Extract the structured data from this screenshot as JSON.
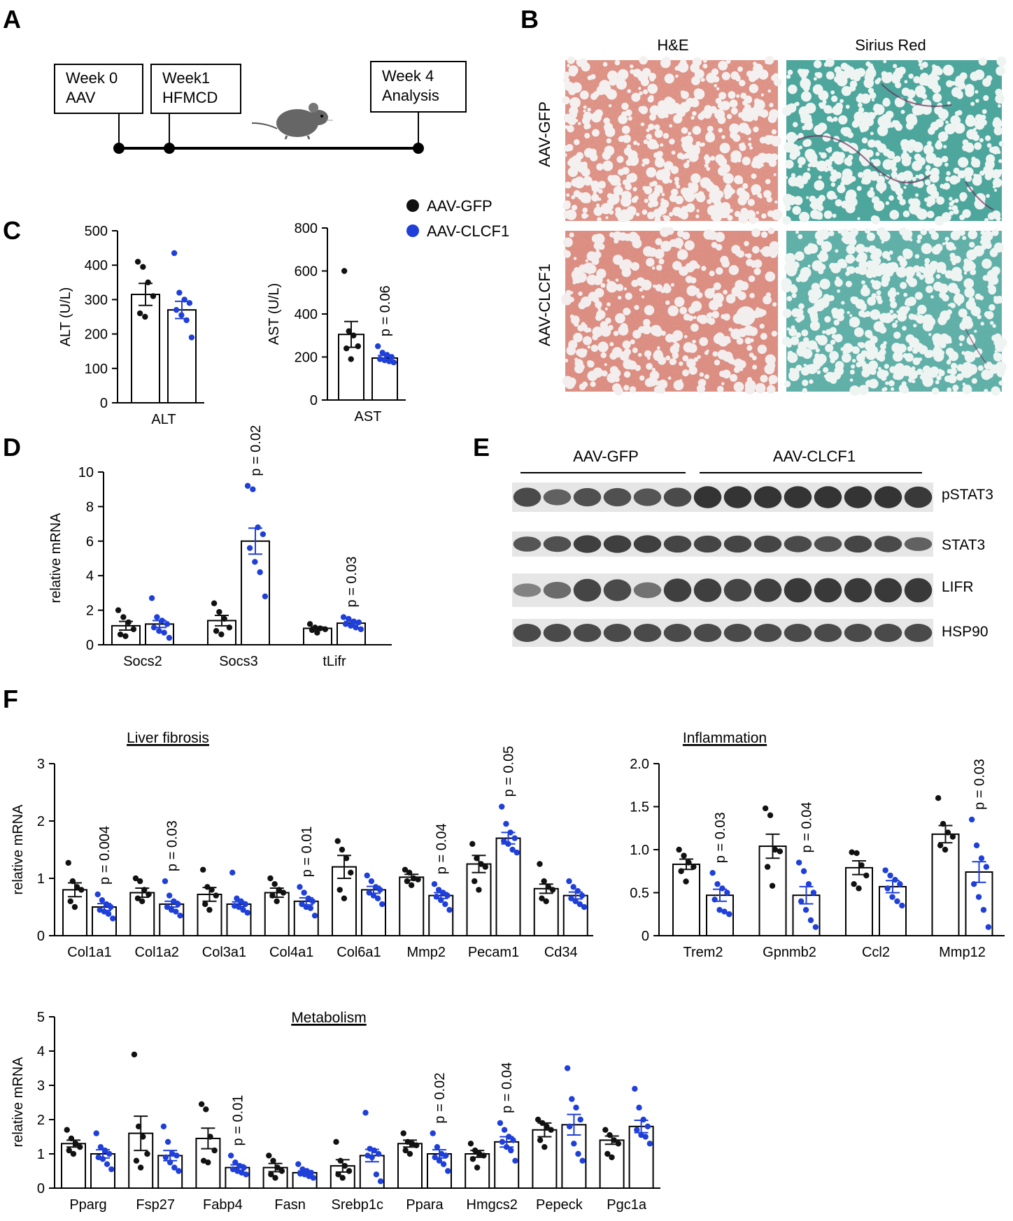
{
  "panel_letters": {
    "a": "A",
    "b": "B",
    "c": "C",
    "d": "D",
    "e": "E",
    "f": "F"
  },
  "colors": {
    "gfp": "#111111",
    "clcf1": "#1f3fd9",
    "he_tissue": "#dd8877",
    "sirius_tissue": "#46a598",
    "blot_band": "#2a2a2a"
  },
  "timeline": {
    "boxes": [
      {
        "line1": "Week 0",
        "line2": "AAV"
      },
      {
        "line1": "Week1",
        "line2": "HFMCD"
      },
      {
        "line1": "Week 4",
        "line2": "Analysis"
      }
    ],
    "icon": "mouse-icon"
  },
  "legend": {
    "gfp": "AAV-GFP",
    "clcf1": "AAV-CLCF1"
  },
  "histology": {
    "columns": [
      "H&E",
      "Sirius Red"
    ],
    "rows": [
      "AAV-GFP",
      "AAV-CLCF1"
    ]
  },
  "western": {
    "group_labels": [
      "AAV-GFP",
      "AAV-CLCF1"
    ],
    "lanes_per_group": [
      6,
      8
    ],
    "rows": [
      {
        "label": "pSTAT3",
        "intensity": [
          0.8,
          0.6,
          0.75,
          0.75,
          0.7,
          0.8,
          1.0,
          1.0,
          1.0,
          1.0,
          1.0,
          1.0,
          1.0,
          0.95
        ]
      },
      {
        "label": "STAT3",
        "intensity": [
          0.7,
          0.75,
          0.9,
          0.9,
          0.9,
          0.85,
          0.85,
          0.85,
          0.85,
          0.8,
          0.75,
          0.85,
          0.8,
          0.6
        ]
      },
      {
        "label": "LIFR",
        "intensity": [
          0.3,
          0.5,
          0.85,
          0.8,
          0.45,
          0.9,
          0.9,
          0.85,
          0.9,
          0.95,
          0.95,
          0.95,
          0.95,
          0.95
        ]
      },
      {
        "label": "HSP90",
        "intensity": [
          0.8,
          0.8,
          0.8,
          0.8,
          0.8,
          0.8,
          0.8,
          0.8,
          0.8,
          0.8,
          0.8,
          0.8,
          0.8,
          0.8
        ]
      }
    ]
  },
  "chart_data": [
    {
      "id": "C-ALT",
      "type": "bar",
      "ylabel": "ALT (U/L)",
      "ylim": [
        0,
        500
      ],
      "yticks": [
        "0",
        "100",
        "200",
        "300",
        "400",
        "500"
      ],
      "categories": [
        "ALT"
      ],
      "series": [
        {
          "color": "gfp",
          "values": [
            315
          ],
          "errors": [
            32
          ],
          "points": [
            [
              410,
              395,
              350,
              310,
              260,
              250
            ]
          ]
        },
        {
          "color": "clcf1",
          "values": [
            270
          ],
          "errors": [
            25
          ],
          "points": [
            [
              435,
              320,
              300,
              290,
              270,
              255,
              240,
              190
            ]
          ]
        }
      ],
      "pvalues": []
    },
    {
      "id": "C-AST",
      "type": "bar",
      "ylabel": "AST (U/L)",
      "ylim": [
        0,
        800
      ],
      "yticks": [
        "0",
        "200",
        "400",
        "600",
        "800"
      ],
      "categories": [
        "AST"
      ],
      "series": [
        {
          "color": "gfp",
          "values": [
            305
          ],
          "errors": [
            60
          ],
          "points": [
            [
              600,
              320,
              300,
              250,
              240,
              190
            ]
          ]
        },
        {
          "color": "clcf1",
          "values": [
            195
          ],
          "errors": [
            12
          ],
          "points": [
            [
              250,
              220,
              210,
              200,
              190,
              185,
              180,
              175
            ]
          ]
        }
      ],
      "pvalues": [
        "p = 0.06"
      ]
    },
    {
      "id": "D",
      "type": "bar",
      "ylabel": "relative mRNA",
      "ylim": [
        0,
        10
      ],
      "yticks": [
        "0",
        "2",
        "4",
        "6",
        "8",
        "10"
      ],
      "categories": [
        "Socs2",
        "Socs3",
        "tLifr"
      ],
      "series": [
        {
          "color": "gfp",
          "values": [
            1.1,
            1.4,
            0.95
          ],
          "errors": [
            0.25,
            0.3,
            0.07
          ],
          "points": [
            [
              2.0,
              1.6,
              1.3,
              0.9,
              0.6,
              0.5
            ],
            [
              2.4,
              1.9,
              1.5,
              1.0,
              0.8,
              0.6
            ],
            [
              1.2,
              1.0,
              0.95,
              0.9,
              0.85,
              0.7
            ]
          ]
        },
        {
          "color": "clcf1",
          "values": [
            1.2,
            6.0,
            1.25
          ],
          "errors": [
            0.2,
            0.75,
            0.1
          ],
          "points": [
            [
              2.7,
              1.6,
              1.4,
              1.2,
              1.0,
              0.8,
              0.7,
              0.4
            ],
            [
              9.2,
              9.0,
              6.8,
              6.4,
              5.6,
              4.8,
              4.2,
              2.8
            ],
            [
              1.6,
              1.5,
              1.35,
              1.3,
              1.2,
              1.1,
              1.0,
              0.9
            ]
          ]
        }
      ],
      "pvalues": [
        "",
        "p = 0.02",
        "p = 0.03"
      ]
    },
    {
      "id": "F-fibrosis",
      "type": "bar",
      "title": "Liver fibrosis",
      "ylabel": "relative mRNA",
      "ylim": [
        0,
        3
      ],
      "yticks": [
        "0",
        "1",
        "2",
        "3"
      ],
      "categories": [
        "Col1a1",
        "Col1a2",
        "Col3a1",
        "Col4a1",
        "Col6a1",
        "Mmp2",
        "Pecam1",
        "Cd34"
      ],
      "series": [
        {
          "color": "gfp",
          "values": [
            0.8,
            0.75,
            0.72,
            0.75,
            1.2,
            1.02,
            1.25,
            0.82
          ],
          "errors": [
            0.12,
            0.08,
            0.12,
            0.08,
            0.2,
            0.05,
            0.15,
            0.08
          ],
          "points": [
            [
              1.27,
              0.95,
              0.85,
              0.8,
              0.6,
              0.5
            ],
            [
              1.0,
              0.95,
              0.8,
              0.72,
              0.65,
              0.6
            ],
            [
              1.15,
              0.85,
              0.8,
              0.7,
              0.55,
              0.45
            ],
            [
              1.0,
              0.9,
              0.8,
              0.75,
              0.7,
              0.6
            ],
            [
              1.65,
              1.5,
              1.35,
              1.1,
              0.8,
              0.65
            ],
            [
              1.15,
              1.1,
              1.0,
              0.98,
              0.95,
              0.88
            ],
            [
              1.6,
              1.35,
              1.25,
              1.2,
              0.95,
              0.8
            ],
            [
              1.25,
              0.95,
              0.85,
              0.8,
              0.65,
              0.6
            ]
          ]
        },
        {
          "color": "clcf1",
          "values": [
            0.5,
            0.55,
            0.55,
            0.6,
            0.8,
            0.7,
            1.7,
            0.7
          ],
          "errors": [
            0.06,
            0.05,
            0.04,
            0.06,
            0.06,
            0.05,
            0.1,
            0.06
          ],
          "points": [
            [
              0.72,
              0.62,
              0.55,
              0.5,
              0.45,
              0.42,
              0.38,
              0.3
            ],
            [
              0.95,
              0.7,
              0.6,
              0.55,
              0.5,
              0.45,
              0.42,
              0.35
            ],
            [
              1.1,
              0.65,
              0.6,
              0.55,
              0.52,
              0.5,
              0.45,
              0.4
            ],
            [
              0.85,
              0.75,
              0.65,
              0.6,
              0.55,
              0.5,
              0.48,
              0.35
            ],
            [
              1.05,
              0.95,
              0.85,
              0.8,
              0.75,
              0.7,
              0.65,
              0.55
            ],
            [
              0.9,
              0.8,
              0.75,
              0.7,
              0.68,
              0.62,
              0.55,
              0.45
            ],
            [
              2.25,
              1.95,
              1.8,
              1.7,
              1.65,
              1.6,
              1.5,
              1.45
            ],
            [
              0.95,
              0.85,
              0.78,
              0.7,
              0.65,
              0.6,
              0.55,
              0.5
            ]
          ]
        }
      ],
      "pvalues": [
        "p = 0.004",
        "p = 0.03",
        "",
        "p = 0.01",
        "",
        "p = 0.04",
        "p = 0.05",
        ""
      ]
    },
    {
      "id": "F-inflammation",
      "type": "bar",
      "title": "Inflammation",
      "ylabel": "",
      "ylim": [
        0,
        2.0
      ],
      "yticks": [
        "0",
        "0.5",
        "1.0",
        "1.5",
        "2.0"
      ],
      "categories": [
        "Trem2",
        "Gpnmb2",
        "Ccl2",
        "Mmp12"
      ],
      "series": [
        {
          "color": "gfp",
          "values": [
            0.83,
            1.04,
            0.79,
            1.18
          ],
          "errors": [
            0.06,
            0.14,
            0.08,
            0.1
          ],
          "points": [
            [
              1.0,
              0.93,
              0.85,
              0.8,
              0.75,
              0.63
            ],
            [
              1.48,
              1.4,
              1.0,
              0.98,
              0.8,
              0.58
            ],
            [
              0.97,
              0.96,
              0.82,
              0.7,
              0.6,
              0.55
            ],
            [
              1.6,
              1.3,
              1.2,
              1.15,
              1.05,
              1.0
            ]
          ]
        },
        {
          "color": "clcf1",
          "values": [
            0.47,
            0.47,
            0.57,
            0.74
          ],
          "errors": [
            0.07,
            0.1,
            0.07,
            0.12
          ],
          "points": [
            [
              0.73,
              0.6,
              0.55,
              0.5,
              0.42,
              0.3,
              0.28,
              0.25
            ],
            [
              0.85,
              0.75,
              0.6,
              0.5,
              0.4,
              0.3,
              0.18,
              0.1
            ],
            [
              0.76,
              0.7,
              0.65,
              0.6,
              0.55,
              0.45,
              0.4,
              0.35
            ],
            [
              1.35,
              1.05,
              0.9,
              0.8,
              0.6,
              0.45,
              0.3,
              0.1
            ]
          ]
        }
      ],
      "pvalues": [
        "p = 0.03",
        "p = 0.04",
        "",
        "p = 0.03"
      ]
    },
    {
      "id": "F-metabolism",
      "type": "bar",
      "title": "Metabolism",
      "ylabel": "relative mRNA",
      "ylim": [
        0,
        5
      ],
      "yticks": [
        "0",
        "1",
        "2",
        "3",
        "4",
        "5"
      ],
      "categories": [
        "Pparg",
        "Fsp27",
        "Fabp4",
        "Fasn",
        "Srebp1c",
        "Ppara",
        "Hmgcs2",
        "Pepeck",
        "Pgc1a"
      ],
      "series": [
        {
          "color": "gfp",
          "values": [
            1.3,
            1.6,
            1.45,
            0.6,
            0.65,
            1.3,
            1.0,
            1.7,
            1.4
          ],
          "errors": [
            0.1,
            0.5,
            0.3,
            0.12,
            0.18,
            0.1,
            0.1,
            0.2,
            0.12
          ],
          "points": [
            [
              1.7,
              1.45,
              1.3,
              1.2,
              1.1,
              1.0
            ],
            [
              3.9,
              1.8,
              1.5,
              1.0,
              0.8,
              0.6
            ],
            [
              2.45,
              2.3,
              1.5,
              1.1,
              0.8,
              0.75
            ],
            [
              0.95,
              0.8,
              0.6,
              0.5,
              0.4,
              0.3
            ],
            [
              1.35,
              0.8,
              0.65,
              0.5,
              0.4,
              0.3
            ],
            [
              1.6,
              1.35,
              1.3,
              1.25,
              1.1,
              1.0
            ],
            [
              1.3,
              1.1,
              1.0,
              0.95,
              0.85,
              0.6
            ],
            [
              2.0,
              1.9,
              1.8,
              1.7,
              1.4,
              1.2
            ],
            [
              1.7,
              1.55,
              1.4,
              1.3,
              1.0,
              0.9
            ]
          ]
        },
        {
          "color": "clcf1",
          "values": [
            1.0,
            0.95,
            0.6,
            0.45,
            0.95,
            1.0,
            1.35,
            1.85,
            1.8
          ],
          "errors": [
            0.12,
            0.15,
            0.08,
            0.05,
            0.18,
            0.12,
            0.15,
            0.3,
            0.18
          ],
          "points": [
            [
              1.6,
              1.2,
              1.1,
              1.0,
              0.9,
              0.85,
              0.7,
              0.55
            ],
            [
              1.8,
              1.35,
              1.0,
              0.95,
              0.9,
              0.75,
              0.6,
              0.5
            ],
            [
              0.95,
              0.75,
              0.65,
              0.6,
              0.55,
              0.5,
              0.45,
              0.4
            ],
            [
              0.7,
              0.55,
              0.5,
              0.45,
              0.42,
              0.4,
              0.35,
              0.3
            ],
            [
              2.2,
              1.15,
              1.1,
              1.0,
              0.95,
              0.9,
              0.4,
              0.2
            ],
            [
              1.6,
              1.2,
              1.0,
              0.95,
              0.9,
              0.8,
              0.7,
              0.5
            ],
            [
              1.9,
              1.7,
              1.5,
              1.4,
              1.35,
              1.2,
              1.1,
              0.8
            ],
            [
              3.5,
              2.6,
              2.35,
              2.0,
              1.8,
              1.3,
              1.0,
              0.8
            ],
            [
              2.9,
              2.35,
              2.0,
              1.8,
              1.7,
              1.55,
              1.5,
              1.3
            ]
          ]
        }
      ],
      "pvalues": [
        "",
        "",
        "p = 0.01",
        "",
        "",
        "p = 0.02",
        "p = 0.04",
        "",
        ""
      ]
    }
  ]
}
